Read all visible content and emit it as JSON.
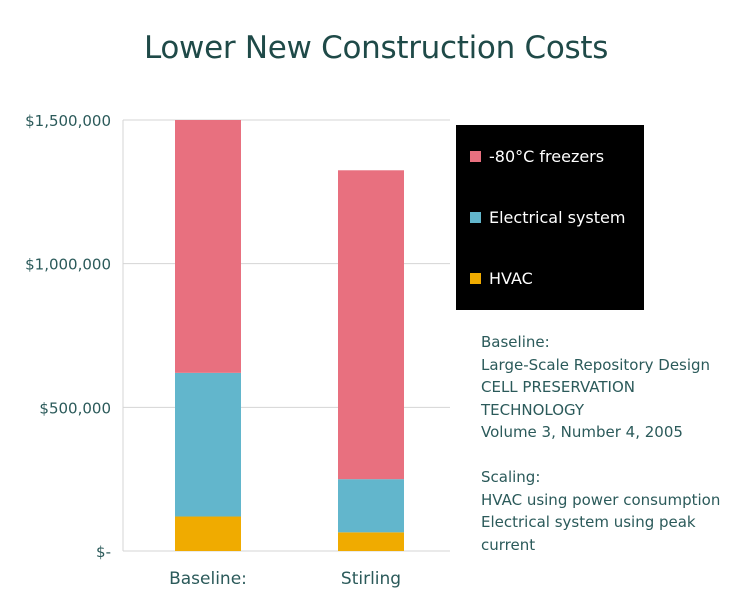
{
  "colors": {
    "freezers": "#e8707f",
    "electrical": "#62b6cc",
    "hvac": "#f0ab00",
    "grid": "#d4d4d4",
    "axis_text": "#2b5a5a",
    "legend_bg": "#000000"
  },
  "chart_data": {
    "type": "bar",
    "stacked": true,
    "title": "Lower New Construction Costs",
    "categories": [
      "Baseline:",
      "Stirling"
    ],
    "series": [
      {
        "name": "HVAC",
        "color": "#f0ab00",
        "values": [
          120000,
          65000
        ]
      },
      {
        "name": "Electrical system",
        "color": "#62b6cc",
        "values": [
          500000,
          185000
        ]
      },
      {
        "name": "-80°C freezers",
        "color": "#e8707f",
        "values": [
          880000,
          1075000
        ]
      }
    ],
    "ylim": [
      0,
      1500000
    ],
    "yticks": [
      0,
      500000,
      1000000,
      1500000
    ],
    "ytick_labels": [
      "$-",
      "$500,000",
      "$1,000,000",
      "$1,500,000"
    ],
    "grid": true,
    "legend": {
      "placement": "right",
      "entries": [
        "-80°C freezers",
        "Electrical system",
        "HVAC"
      ]
    }
  },
  "notes": {
    "lines": [
      "Baseline:",
      "Large-Scale Repository Design",
      "CELL PRESERVATION",
      "TECHNOLOGY",
      "Volume 3, Number 4, 2005",
      "",
      "Scaling:",
      "HVAC using power consumption",
      "Electrical system using peak",
      "current"
    ]
  }
}
